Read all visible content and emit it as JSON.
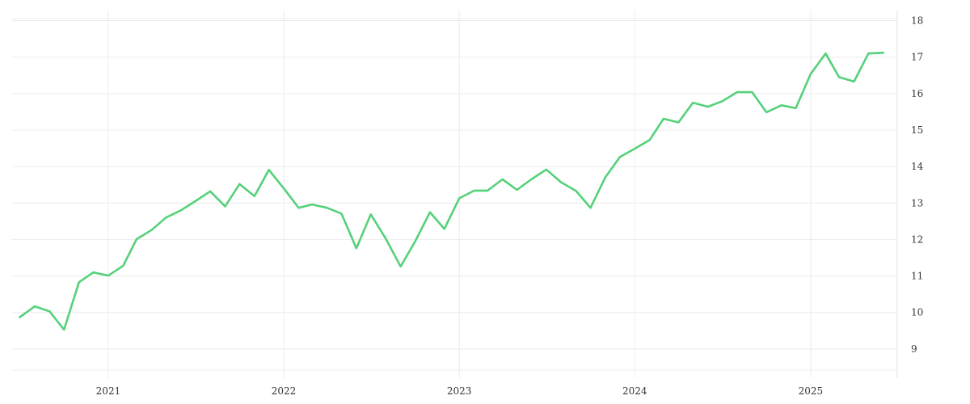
{
  "chart_data": {
    "type": "line",
    "title": "",
    "xlabel": "",
    "ylabel": "",
    "x_ticks": [
      "2021",
      "2022",
      "2023",
      "2024",
      "2025"
    ],
    "y_ticks": [
      9,
      10,
      11,
      12,
      13,
      14,
      15,
      16,
      17,
      18
    ],
    "ylim": [
      8.2,
      18.3
    ],
    "xlim": [
      "2020-06-15",
      "2025-06-30"
    ],
    "grid": true,
    "y_axis_side": "right",
    "colors": {
      "series": "#55d17a",
      "grid": "#ececec"
    },
    "series": [
      {
        "x": [
          "2020-07-01",
          "2020-08-01",
          "2020-09-01",
          "2020-10-01",
          "2020-11-01",
          "2020-12-01",
          "2021-01-01",
          "2021-02-01",
          "2021-03-01",
          "2021-04-01",
          "2021-05-01",
          "2021-06-01",
          "2021-07-01",
          "2021-08-01",
          "2021-09-01",
          "2021-10-01",
          "2021-11-01",
          "2021-12-01",
          "2022-01-01",
          "2022-02-01",
          "2022-03-01",
          "2022-04-01",
          "2022-05-01",
          "2022-06-01",
          "2022-07-01",
          "2022-08-01",
          "2022-09-01",
          "2022-10-01",
          "2022-11-01",
          "2022-12-01",
          "2023-01-01",
          "2023-02-01",
          "2023-03-01",
          "2023-04-01",
          "2023-05-01",
          "2023-06-01",
          "2023-07-01",
          "2023-08-01",
          "2023-09-01",
          "2023-10-01",
          "2023-11-01",
          "2023-12-01",
          "2024-01-01",
          "2024-02-01",
          "2024-03-01",
          "2024-04-01",
          "2024-05-01",
          "2024-06-01",
          "2024-07-01",
          "2024-08-01",
          "2024-09-01",
          "2024-10-01",
          "2024-11-01",
          "2024-12-01",
          "2025-01-01",
          "2025-02-01",
          "2025-03-01",
          "2025-04-01",
          "2025-05-01",
          "2025-06-01"
        ],
        "y": [
          9.87,
          10.17,
          10.03,
          9.53,
          10.83,
          11.1,
          11.01,
          11.28,
          12.01,
          12.26,
          12.6,
          12.8,
          13.05,
          13.32,
          12.91,
          13.52,
          13.19,
          13.91,
          13.4,
          12.87,
          12.96,
          12.87,
          12.71,
          11.76,
          12.69,
          12.03,
          11.26,
          11.94,
          12.75,
          12.29,
          13.13,
          13.34,
          13.34,
          13.65,
          13.36,
          13.66,
          13.92,
          13.57,
          13.33,
          12.87,
          13.71,
          14.26,
          14.49,
          14.73,
          15.31,
          15.21,
          15.75,
          15.64,
          15.79,
          16.04,
          16.04,
          15.49,
          15.68,
          15.6,
          16.54,
          17.1,
          16.45,
          16.33,
          17.1,
          17.12
        ]
      }
    ]
  }
}
